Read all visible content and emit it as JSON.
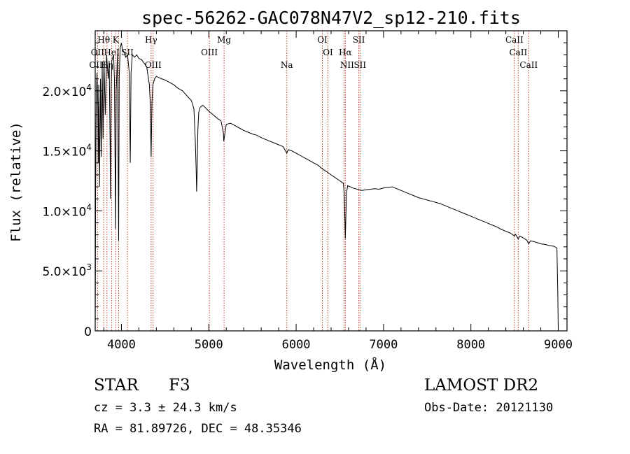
{
  "chart_data": {
    "type": "line",
    "title": "spec-56262-GAC078N47V2_sp12-210.fits",
    "xlabel": "Wavelength (Å)",
    "ylabel": "Flux (relative)",
    "xlim": [
      3700,
      9100
    ],
    "ylim": [
      0,
      25000
    ],
    "x_ticks": [
      4000,
      5000,
      6000,
      7000,
      8000,
      9000
    ],
    "x_tick_labels": [
      "4000",
      "5000",
      "6000",
      "7000",
      "8000",
      "9000"
    ],
    "y_ticks": [
      0,
      5000,
      10000,
      15000,
      20000
    ],
    "y_tick_labels": [
      {
        "mantissa": "0",
        "exp": ""
      },
      {
        "mantissa": "5.0×10",
        "exp": "3"
      },
      {
        "mantissa": "1.0×10",
        "exp": "4"
      },
      {
        "mantissa": "1.5×10",
        "exp": "4"
      },
      {
        "mantissa": "2.0×10",
        "exp": "4"
      }
    ],
    "series": [
      {
        "name": "flux",
        "points": [
          [
            3700,
            0
          ],
          [
            3705,
            12000
          ],
          [
            3712,
            19000
          ],
          [
            3720,
            21500
          ],
          [
            3730,
            19000
          ],
          [
            3735,
            14000
          ],
          [
            3740,
            20500
          ],
          [
            3750,
            12000
          ],
          [
            3760,
            21000
          ],
          [
            3770,
            14500
          ],
          [
            3780,
            22000
          ],
          [
            3790,
            16000
          ],
          [
            3800,
            22500
          ],
          [
            3815,
            18000
          ],
          [
            3830,
            23000
          ],
          [
            3850,
            21000
          ],
          [
            3860,
            22500
          ],
          [
            3870,
            16000
          ],
          [
            3875,
            11000
          ],
          [
            3882,
            20000
          ],
          [
            3890,
            22500
          ],
          [
            3910,
            23000
          ],
          [
            3920,
            21000
          ],
          [
            3933,
            8500
          ],
          [
            3940,
            20000
          ],
          [
            3955,
            23000
          ],
          [
            3968,
            7500
          ],
          [
            3975,
            21000
          ],
          [
            3985,
            23500
          ],
          [
            4000,
            24000
          ],
          [
            4010,
            23500
          ],
          [
            4030,
            23200
          ],
          [
            4050,
            22800
          ],
          [
            4070,
            23000
          ],
          [
            4090,
            21500
          ],
          [
            4101,
            14000
          ],
          [
            4110,
            21500
          ],
          [
            4125,
            23000
          ],
          [
            4150,
            22800
          ],
          [
            4175,
            23000
          ],
          [
            4200,
            22700
          ],
          [
            4230,
            22600
          ],
          [
            4260,
            22300
          ],
          [
            4290,
            22000
          ],
          [
            4310,
            21000
          ],
          [
            4320,
            20500
          ],
          [
            4330,
            19000
          ],
          [
            4340,
            14500
          ],
          [
            4350,
            19000
          ],
          [
            4360,
            20500
          ],
          [
            4380,
            21000
          ],
          [
            4400,
            21200
          ],
          [
            4430,
            21100
          ],
          [
            4460,
            21000
          ],
          [
            4500,
            20900
          ],
          [
            4550,
            20700
          ],
          [
            4600,
            20500
          ],
          [
            4650,
            20200
          ],
          [
            4700,
            20000
          ],
          [
            4760,
            19500
          ],
          [
            4800,
            19200
          ],
          [
            4830,
            18500
          ],
          [
            4845,
            16000
          ],
          [
            4855,
            13500
          ],
          [
            4861,
            11600
          ],
          [
            4867,
            13500
          ],
          [
            4875,
            16800
          ],
          [
            4885,
            18200
          ],
          [
            4900,
            18600
          ],
          [
            4930,
            18800
          ],
          [
            4960,
            18600
          ],
          [
            5000,
            18300
          ],
          [
            5050,
            18000
          ],
          [
            5100,
            17700
          ],
          [
            5140,
            17500
          ],
          [
            5167,
            16500
          ],
          [
            5172,
            15800
          ],
          [
            5184,
            16400
          ],
          [
            5200,
            17200
          ],
          [
            5250,
            17300
          ],
          [
            5300,
            17100
          ],
          [
            5350,
            16900
          ],
          [
            5400,
            16700
          ],
          [
            5450,
            16550
          ],
          [
            5500,
            16400
          ],
          [
            5550,
            16300
          ],
          [
            5600,
            16100
          ],
          [
            5650,
            15950
          ],
          [
            5700,
            15800
          ],
          [
            5750,
            15650
          ],
          [
            5800,
            15500
          ],
          [
            5850,
            15350
          ],
          [
            5893,
            14800
          ],
          [
            5910,
            15100
          ],
          [
            5950,
            15000
          ],
          [
            6000,
            14800
          ],
          [
            6050,
            14600
          ],
          [
            6100,
            14400
          ],
          [
            6150,
            14200
          ],
          [
            6200,
            14000
          ],
          [
            6250,
            13800
          ],
          [
            6300,
            13500
          ],
          [
            6350,
            13250
          ],
          [
            6400,
            13000
          ],
          [
            6450,
            12750
          ],
          [
            6500,
            12500
          ],
          [
            6540,
            12300
          ],
          [
            6550,
            11500
          ],
          [
            6557,
            9500
          ],
          [
            6563,
            7700
          ],
          [
            6569,
            9500
          ],
          [
            6576,
            11500
          ],
          [
            6590,
            12100
          ],
          [
            6620,
            12000
          ],
          [
            6650,
            11900
          ],
          [
            6700,
            11800
          ],
          [
            6750,
            11700
          ],
          [
            6800,
            11750
          ],
          [
            6850,
            11800
          ],
          [
            6900,
            11850
          ],
          [
            6950,
            11800
          ],
          [
            7000,
            11900
          ],
          [
            7050,
            11950
          ],
          [
            7100,
            12000
          ],
          [
            7150,
            11850
          ],
          [
            7200,
            11700
          ],
          [
            7250,
            11550
          ],
          [
            7300,
            11400
          ],
          [
            7350,
            11250
          ],
          [
            7400,
            11100
          ],
          [
            7450,
            11000
          ],
          [
            7500,
            10900
          ],
          [
            7550,
            10800
          ],
          [
            7600,
            10700
          ],
          [
            7650,
            10600
          ],
          [
            7700,
            10450
          ],
          [
            7750,
            10300
          ],
          [
            7800,
            10150
          ],
          [
            7850,
            10000
          ],
          [
            7900,
            9850
          ],
          [
            7950,
            9700
          ],
          [
            8000,
            9550
          ],
          [
            8050,
            9400
          ],
          [
            8100,
            9250
          ],
          [
            8150,
            9100
          ],
          [
            8200,
            8950
          ],
          [
            8250,
            8800
          ],
          [
            8300,
            8650
          ],
          [
            8350,
            8450
          ],
          [
            8400,
            8300
          ],
          [
            8450,
            8150
          ],
          [
            8498,
            7900
          ],
          [
            8510,
            8050
          ],
          [
            8542,
            7650
          ],
          [
            8560,
            7900
          ],
          [
            8600,
            7750
          ],
          [
            8640,
            7550
          ],
          [
            8662,
            7250
          ],
          [
            8680,
            7500
          ],
          [
            8720,
            7450
          ],
          [
            8760,
            7350
          ],
          [
            8800,
            7250
          ],
          [
            8850,
            7200
          ],
          [
            8900,
            7100
          ],
          [
            8950,
            7050
          ],
          [
            8985,
            6900
          ],
          [
            8995,
            3000
          ],
          [
            9000,
            0
          ]
        ]
      }
    ],
    "line_markers": [
      {
        "label": "Hθ",
        "wavelength": 3798,
        "row": 0
      },
      {
        "label": "K",
        "wavelength": 3934,
        "row": 0
      },
      {
        "label": "Hγ",
        "wavelength": 4340,
        "row": 0
      },
      {
        "label": "Mg",
        "wavelength": 5175,
        "row": 0
      },
      {
        "label": "OI",
        "wavelength": 6300,
        "row": 0
      },
      {
        "label": "SII",
        "wavelength": 6717,
        "row": 0
      },
      {
        "label": "CaII",
        "wavelength": 8498,
        "row": 0
      },
      {
        "label": "OII",
        "wavelength": 3727,
        "row": 1
      },
      {
        "label": "HeI",
        "wavelength": 3889,
        "row": 1
      },
      {
        "label": "SII",
        "wavelength": 4069,
        "row": 1
      },
      {
        "label": "OIII",
        "wavelength": 5007,
        "row": 1
      },
      {
        "label": "OI",
        "wavelength": 6364,
        "row": 1
      },
      {
        "label": "Hα",
        "wavelength": 6563,
        "row": 1
      },
      {
        "label": "CaII",
        "wavelength": 8542,
        "row": 1
      },
      {
        "label": "OIII",
        "wavelength": 3727,
        "row": 2
      },
      {
        "label": "Hη",
        "wavelength": 3835,
        "row": 2
      },
      {
        "label": "OIII",
        "wavelength": 4363,
        "row": 2
      },
      {
        "label": "Na",
        "wavelength": 5893,
        "row": 2
      },
      {
        "label": "NII",
        "wavelength": 6583,
        "row": 2
      },
      {
        "label": "SII",
        "wavelength": 6731,
        "row": 2
      },
      {
        "label": "CaII",
        "wavelength": 8662,
        "row": 2
      }
    ],
    "marker_line_wavelengths": [
      3727,
      3798,
      3835,
      3889,
      3934,
      3968,
      4069,
      4340,
      4363,
      5007,
      5175,
      5893,
      6300,
      6364,
      6548,
      6563,
      6717,
      6731,
      8498,
      8542,
      8662
    ]
  },
  "info": {
    "object_class": "STAR",
    "subclass": "F3",
    "cz": "cz = 3.3 ± 24.3 km/s",
    "radec": "RA =  81.89726, DEC =  48.35346",
    "survey": "LAMOST DR2",
    "obs_date": "Obs-Date: 20121130"
  }
}
